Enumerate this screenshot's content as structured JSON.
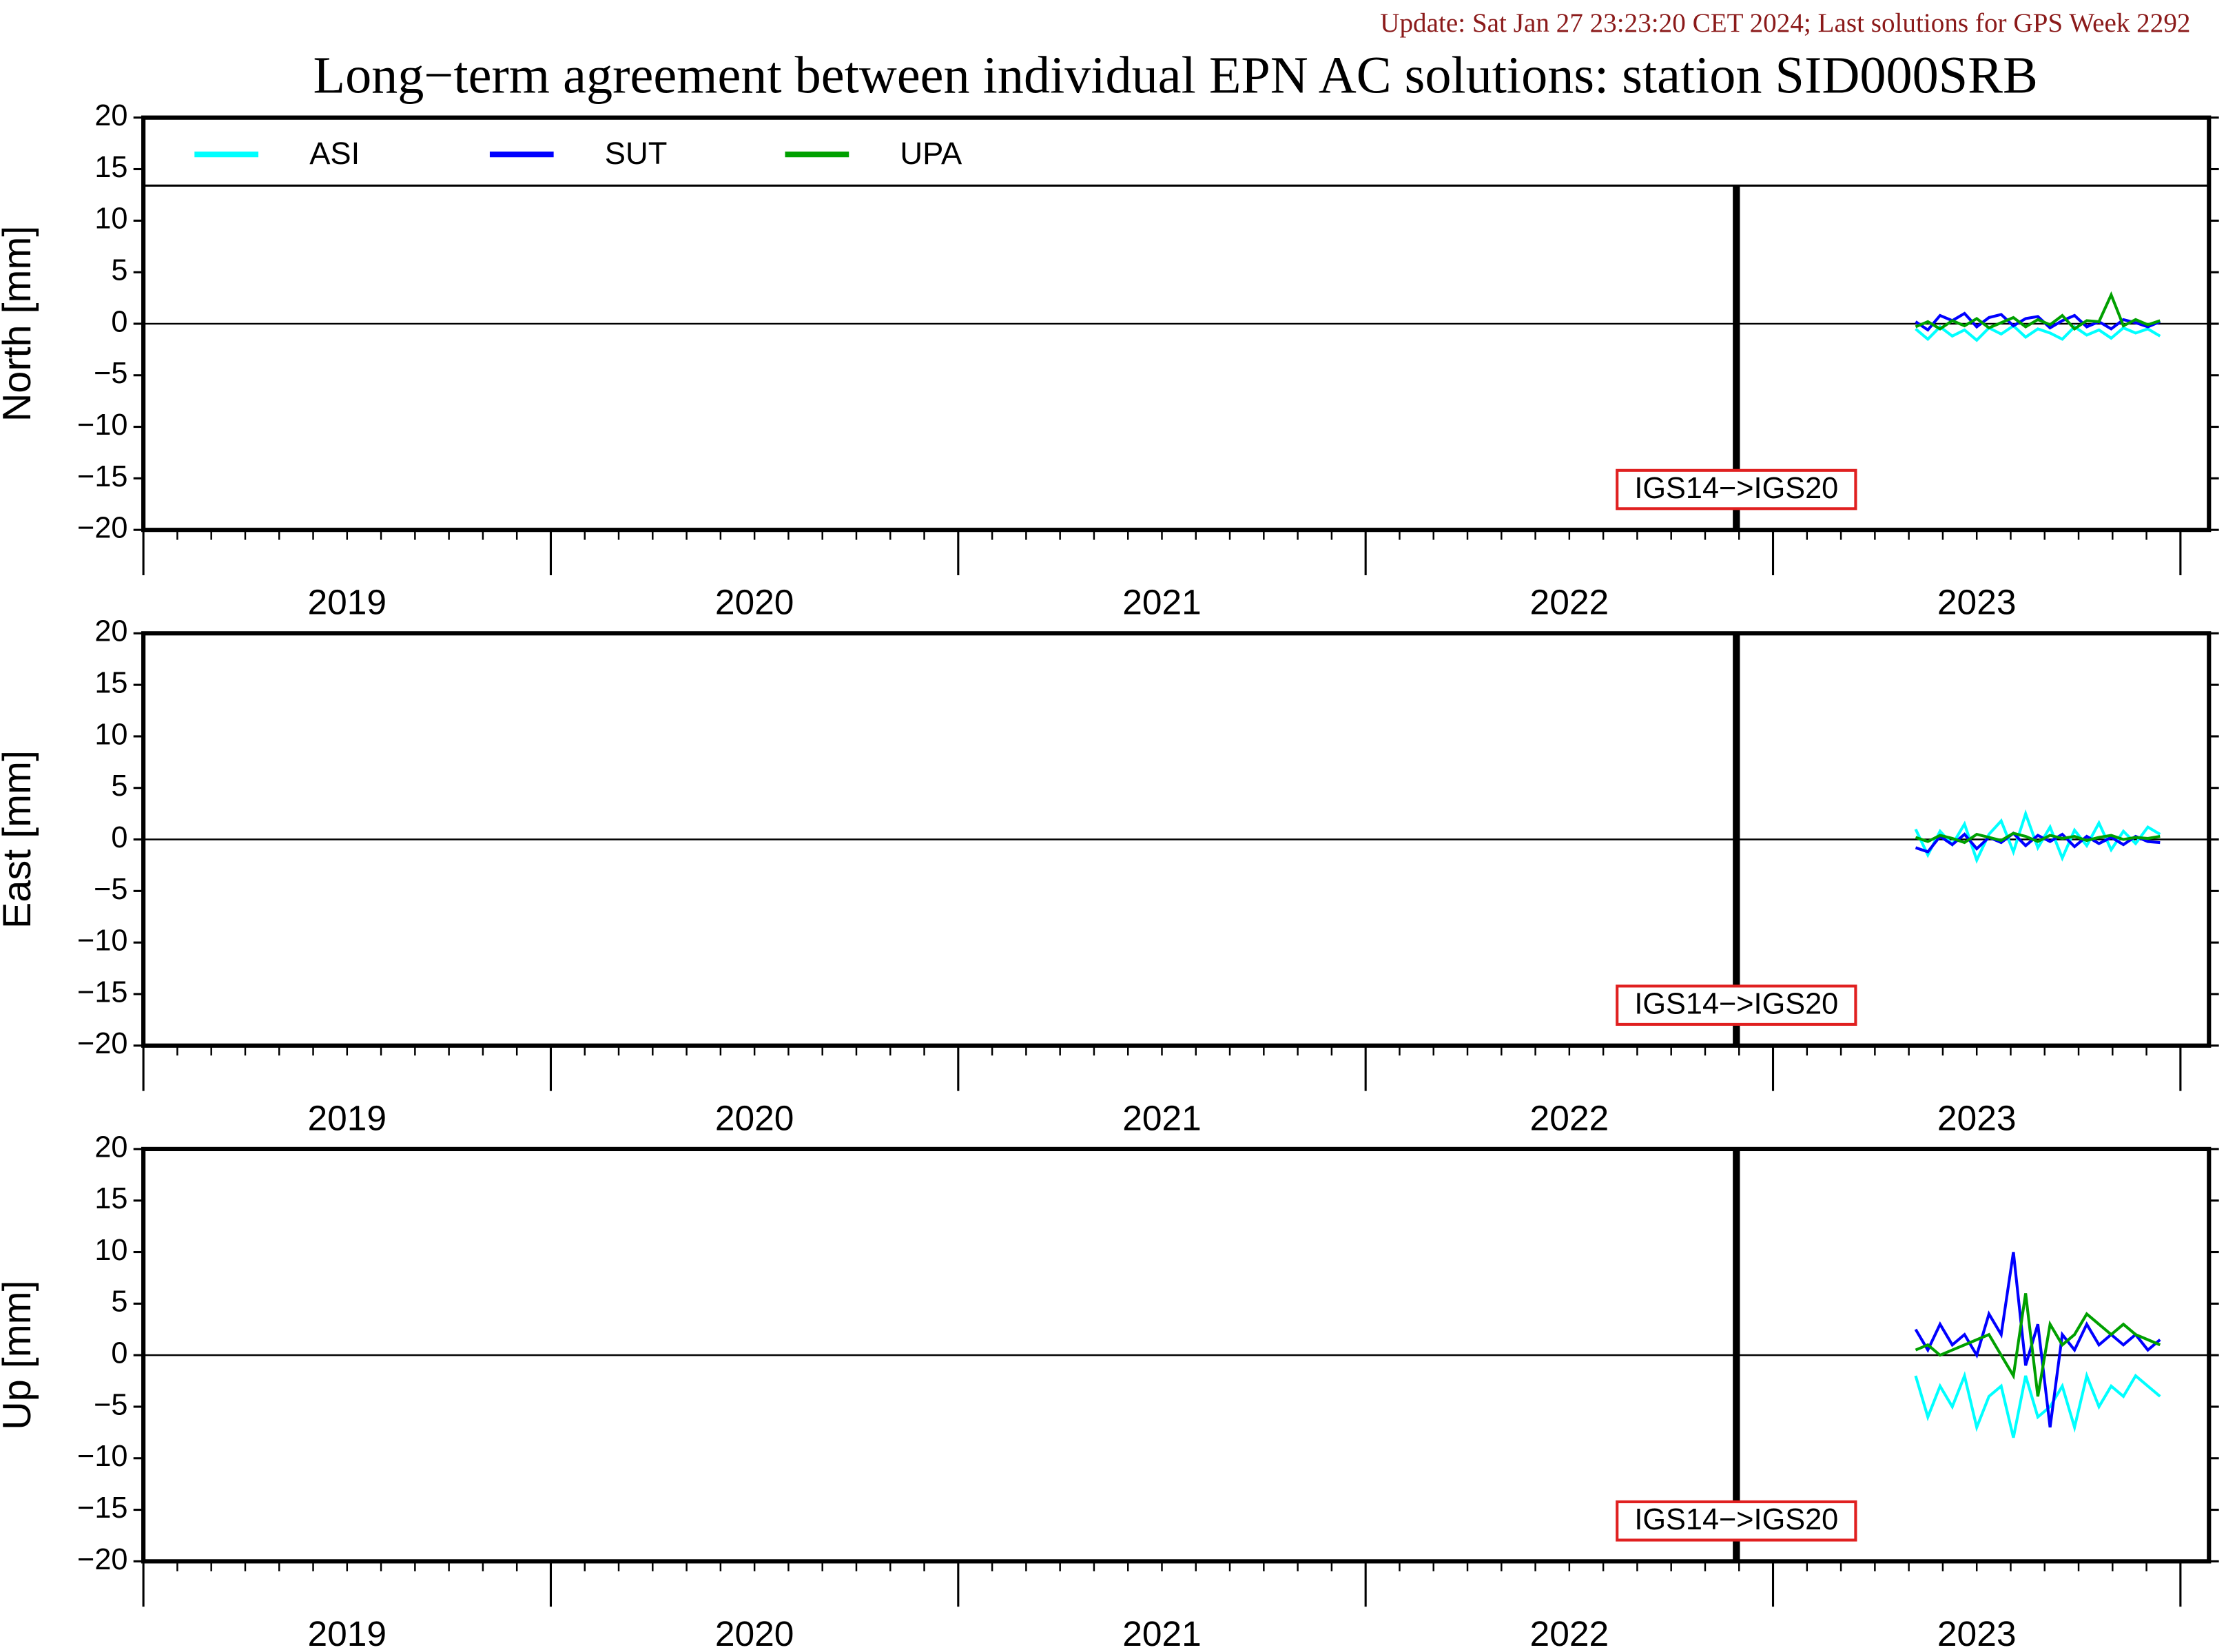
{
  "header": {
    "update": "Update: Sat Jan 27 23:23:20 CET 2024; Last solutions for GPS Week 2292",
    "title": "Long−term agreement between individual EPN AC solutions: station SID000SRB"
  },
  "chart_data": [
    {
      "type": "line",
      "y_label": "North [mm]",
      "x": [
        2023.35,
        2023.38,
        2023.41,
        2023.44,
        2023.47,
        2023.5,
        2023.53,
        2023.56,
        2023.59,
        2023.62,
        2023.65,
        2023.68,
        2023.71,
        2023.74,
        2023.77,
        2023.8,
        2023.83,
        2023.86,
        2023.89,
        2023.92,
        2023.95
      ],
      "series": [
        {
          "name": "ASI",
          "color": "#00ffff",
          "values": [
            -0.5,
            -1.5,
            -0.3,
            -1.2,
            -0.6,
            -1.6,
            -0.4,
            -1.0,
            -0.2,
            -1.3,
            -0.5,
            -0.9,
            -1.5,
            -0.3,
            -1.1,
            -0.6,
            -1.4,
            -0.4,
            -0.9,
            -0.5,
            -1.2
          ]
        },
        {
          "name": "SUT",
          "color": "#0000ff",
          "values": [
            0.2,
            -0.6,
            0.8,
            0.3,
            1.0,
            -0.3,
            0.6,
            0.9,
            -0.2,
            0.5,
            0.7,
            -0.4,
            0.3,
            0.8,
            -0.3,
            0.2,
            -0.5,
            0.4,
            0.1,
            -0.3,
            0.2
          ]
        },
        {
          "name": "UPA",
          "color": "#00a000",
          "values": [
            -0.3,
            0.2,
            -0.5,
            0.3,
            -0.2,
            0.5,
            -0.4,
            0.1,
            0.6,
            -0.3,
            0.4,
            -0.1,
            0.8,
            -0.5,
            0.3,
            0.2,
            2.8,
            -0.2,
            0.4,
            -0.1,
            0.3
          ]
        }
      ],
      "legend": "top",
      "reference_line": 0,
      "events": [
        {
          "x": 2022.91,
          "label": "IGS14−>IGS20"
        }
      ],
      "xlim": [
        2019.0,
        2024.07
      ],
      "xticks_major": [
        2019,
        2020,
        2021,
        2022,
        2023,
        2024
      ],
      "xticks": [
        {
          "value": 2019.5,
          "label": "2019"
        },
        {
          "value": 2020.5,
          "label": "2020"
        },
        {
          "value": 2021.5,
          "label": "2021"
        },
        {
          "value": 2022.5,
          "label": "2022"
        },
        {
          "value": 2023.5,
          "label": "2023"
        }
      ],
      "ylim": [
        -20,
        20
      ],
      "yticks": [
        {
          "value": -20,
          "label": "−20"
        },
        {
          "value": -15,
          "label": "−15"
        },
        {
          "value": -10,
          "label": "−10"
        },
        {
          "value": -5,
          "label": "−5"
        },
        0,
        5,
        10,
        15,
        20
      ]
    },
    {
      "type": "line",
      "y_label": "East [mm]",
      "x": [
        2023.35,
        2023.38,
        2023.41,
        2023.44,
        2023.47,
        2023.5,
        2023.53,
        2023.56,
        2023.59,
        2023.62,
        2023.65,
        2023.68,
        2023.71,
        2023.74,
        2023.77,
        2023.8,
        2023.83,
        2023.86,
        2023.89,
        2023.92,
        2023.95
      ],
      "series": [
        {
          "name": "ASI",
          "color": "#00ffff",
          "values": [
            1.0,
            -1.5,
            0.8,
            -0.5,
            1.5,
            -2.0,
            0.5,
            1.8,
            -1.2,
            2.5,
            -0.8,
            1.2,
            -1.8,
            0.9,
            -0.6,
            1.6,
            -1.0,
            0.8,
            -0.4,
            1.2,
            0.5
          ]
        },
        {
          "name": "SUT",
          "color": "#0000ff",
          "values": [
            -0.8,
            -1.2,
            0.3,
            -0.5,
            0.5,
            -0.9,
            0.2,
            -0.3,
            0.6,
            -0.6,
            0.4,
            -0.2,
            0.5,
            -0.7,
            0.3,
            -0.4,
            0.2,
            -0.5,
            0.3,
            -0.2,
            -0.3
          ]
        },
        {
          "name": "UPA",
          "color": "#00a000",
          "values": [
            0.2,
            -0.2,
            0.4,
            0.1,
            -0.3,
            0.5,
            0.2,
            -0.1,
            0.6,
            0.3,
            -0.2,
            0.4,
            0.1,
            0.3,
            -0.1,
            0.2,
            0.4,
            0.0,
            0.2,
            0.1,
            0.3
          ]
        }
      ],
      "reference_line": 0,
      "events": [
        {
          "x": 2022.91,
          "label": "IGS14−>IGS20"
        }
      ],
      "xlim": [
        2019.0,
        2024.07
      ],
      "xticks_major": [
        2019,
        2020,
        2021,
        2022,
        2023,
        2024
      ],
      "xticks": [
        {
          "value": 2019.5,
          "label": "2019"
        },
        {
          "value": 2020.5,
          "label": "2020"
        },
        {
          "value": 2021.5,
          "label": "2021"
        },
        {
          "value": 2022.5,
          "label": "2022"
        },
        {
          "value": 2023.5,
          "label": "2023"
        }
      ],
      "ylim": [
        -20,
        20
      ],
      "yticks": [
        {
          "value": -20,
          "label": "−20"
        },
        {
          "value": -15,
          "label": "−15"
        },
        {
          "value": -10,
          "label": "−10"
        },
        {
          "value": -5,
          "label": "−5"
        },
        0,
        5,
        10,
        15,
        20
      ]
    },
    {
      "type": "line",
      "y_label": "Up [mm]",
      "x": [
        2023.35,
        2023.38,
        2023.41,
        2023.44,
        2023.47,
        2023.5,
        2023.53,
        2023.56,
        2023.59,
        2023.62,
        2023.65,
        2023.68,
        2023.71,
        2023.74,
        2023.77,
        2023.8,
        2023.83,
        2023.86,
        2023.89,
        2023.92,
        2023.95
      ],
      "series": [
        {
          "name": "ASI",
          "color": "#00ffff",
          "values": [
            -2,
            -6,
            -3,
            -5,
            -2,
            -7,
            -4,
            -3,
            -8,
            -2,
            -6,
            -5,
            -3,
            -7,
            -2,
            -5,
            -3,
            -4,
            -2,
            -3,
            -4
          ]
        },
        {
          "name": "SUT",
          "color": "#0000ff",
          "values": [
            2.5,
            0.5,
            3,
            1,
            2,
            0,
            4,
            2,
            10,
            -1,
            3,
            -7,
            2,
            0.5,
            3,
            1,
            2,
            1,
            2,
            0.5,
            1.5
          ]
        },
        {
          "name": "UPA",
          "color": "#00a000",
          "values": [
            0.5,
            1,
            0,
            0.5,
            1,
            1.5,
            2,
            0,
            -2,
            6,
            -4,
            3,
            1,
            2,
            4,
            3,
            2,
            3,
            2,
            1.5,
            1
          ]
        }
      ],
      "reference_line": 0,
      "events": [
        {
          "x": 2022.91,
          "label": "IGS14−>IGS20"
        }
      ],
      "xlim": [
        2019.0,
        2024.07
      ],
      "xticks_major": [
        2019,
        2020,
        2021,
        2022,
        2023,
        2024
      ],
      "xticks": [
        {
          "value": 2019.5,
          "label": "2019"
        },
        {
          "value": 2020.5,
          "label": "2020"
        },
        {
          "value": 2021.5,
          "label": "2021"
        },
        {
          "value": 2022.5,
          "label": "2022"
        },
        {
          "value": 2023.5,
          "label": "2023"
        }
      ],
      "ylim": [
        -20,
        20
      ],
      "yticks": [
        {
          "value": -20,
          "label": "−20"
        },
        {
          "value": -15,
          "label": "−15"
        },
        {
          "value": -10,
          "label": "−10"
        },
        {
          "value": -5,
          "label": "−5"
        },
        0,
        5,
        10,
        15,
        20
      ]
    }
  ]
}
